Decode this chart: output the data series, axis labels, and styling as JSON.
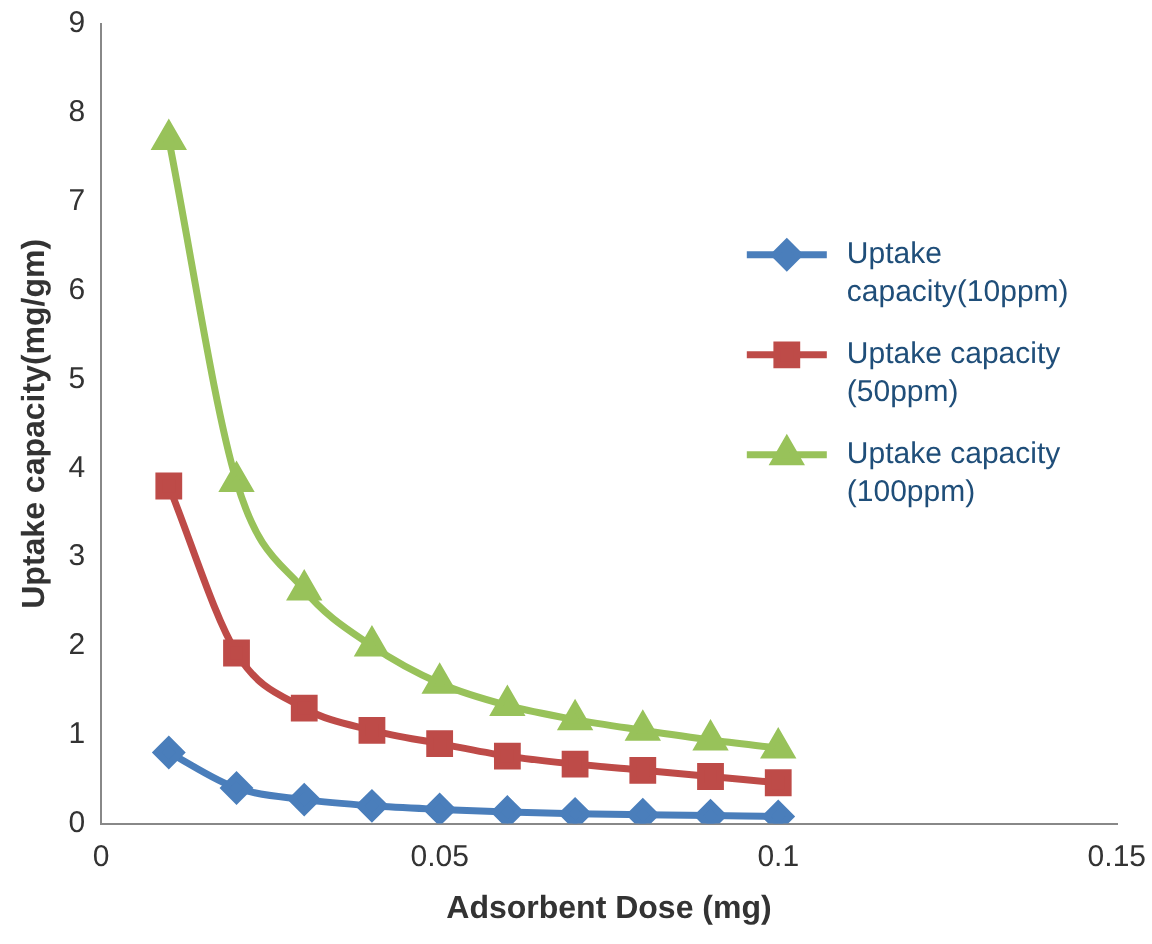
{
  "chart_data": {
    "type": "line",
    "xlabel": "Adsorbent Dose (mg)",
    "ylabel": "Uptake capacity(mg/gm)",
    "x": [
      0.01,
      0.02,
      0.03,
      0.04,
      0.05,
      0.06,
      0.07,
      0.08,
      0.09,
      0.1
    ],
    "xlim": [
      0,
      0.15
    ],
    "xticks": [
      0,
      0.05,
      0.1,
      0.15
    ],
    "ylim": [
      0,
      9
    ],
    "yticks": [
      0,
      1,
      2,
      3,
      4,
      5,
      6,
      7,
      8,
      9
    ],
    "grid": false,
    "legend": "right",
    "series": [
      {
        "name": "Uptake capacity(10ppm)",
        "color": "#4a7ebb",
        "marker": "diamond",
        "values": [
          0.8,
          0.4,
          0.27,
          0.2,
          0.16,
          0.13,
          0.11,
          0.1,
          0.09,
          0.08
        ]
      },
      {
        "name": "Uptake capacity (50ppm)",
        "color": "#be4b48",
        "marker": "square",
        "values": [
          3.8,
          1.92,
          1.3,
          1.05,
          0.9,
          0.76,
          0.67,
          0.6,
          0.53,
          0.46
        ]
      },
      {
        "name": "Uptake capacity (100ppm)",
        "color": "#98c25a",
        "marker": "triangle",
        "values": [
          7.7,
          3.85,
          2.63,
          2.0,
          1.58,
          1.33,
          1.17,
          1.05,
          0.94,
          0.85
        ]
      }
    ]
  }
}
